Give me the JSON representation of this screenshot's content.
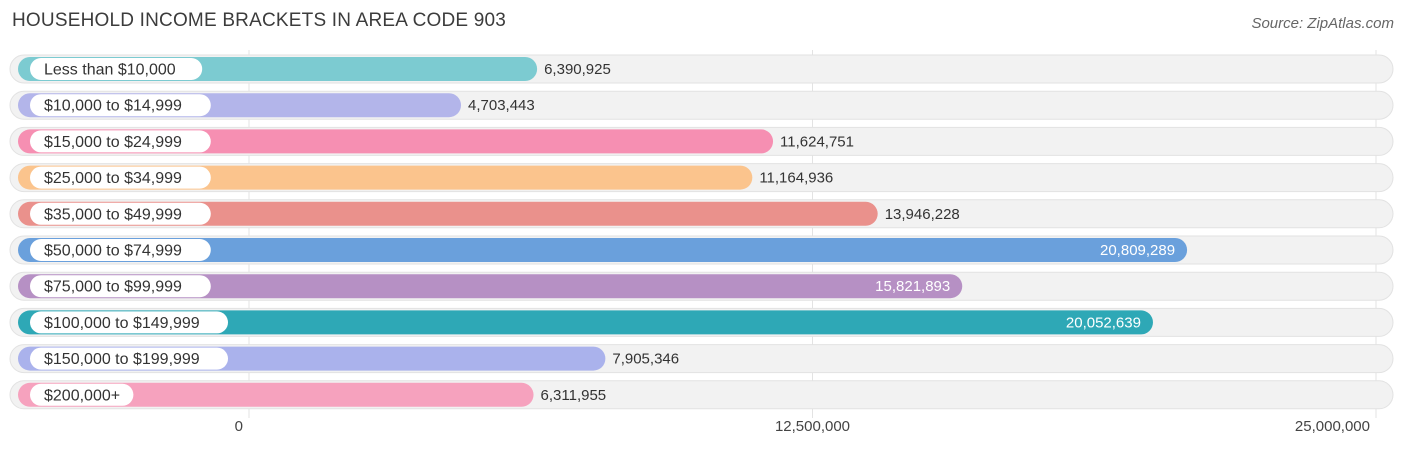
{
  "chart_data": {
    "type": "bar",
    "orientation": "horizontal",
    "title": "HOUSEHOLD INCOME BRACKETS IN AREA CODE 903",
    "source": "Source: ZipAtlas.com",
    "xlim": [
      0,
      25000000
    ],
    "xticks": [
      0,
      12500000,
      25000000
    ],
    "xtick_labels": [
      "0",
      "12,500,000",
      "25,000,000"
    ],
    "categories": [
      "Less than $10,000",
      "$10,000 to $14,999",
      "$15,000 to $24,999",
      "$25,000 to $34,999",
      "$35,000 to $49,999",
      "$50,000 to $74,999",
      "$75,000 to $99,999",
      "$100,000 to $149,999",
      "$150,000 to $199,999",
      "$200,000+"
    ],
    "values": [
      6390925,
      4703443,
      11624751,
      11164936,
      13946228,
      20809289,
      15821893,
      20052639,
      7905346,
      6311955
    ],
    "value_labels": [
      "6,390,925",
      "4,703,443",
      "11,624,751",
      "11,164,936",
      "13,946,228",
      "20,809,289",
      "15,821,893",
      "20,052,639",
      "7,905,346",
      "6,311,955"
    ],
    "colors": [
      "#7ccbd1",
      "#b3b5ea",
      "#f68fb2",
      "#fbc48d",
      "#ea918c",
      "#6aa0dc",
      "#b690c4",
      "#2ea8b6",
      "#aab2ec",
      "#f6a2be"
    ],
    "label_inside": [
      false,
      false,
      false,
      false,
      false,
      true,
      true,
      true,
      false,
      false
    ]
  }
}
